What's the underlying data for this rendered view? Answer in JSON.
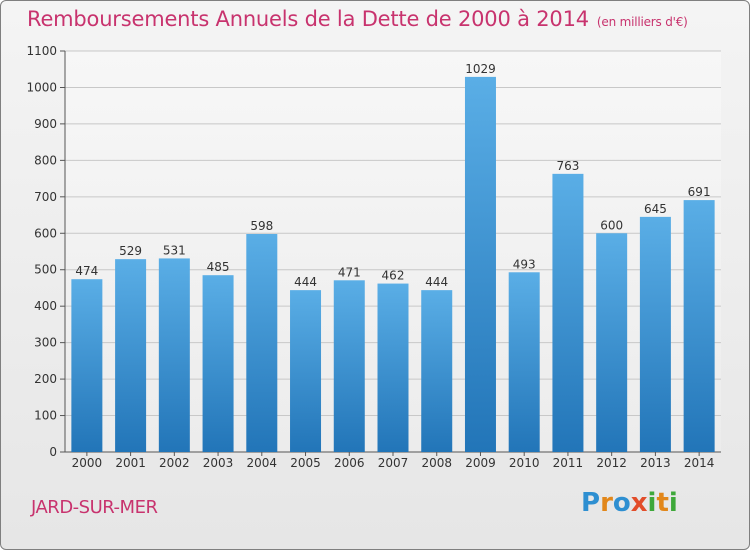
{
  "title": "Remboursements Annuels de la Dette de 2000 à 2014",
  "unit_note": "(en milliers d'€)",
  "commune": "JARD-SUR-MER",
  "logo": "Proxiti",
  "colors": {
    "title": "#c8336e",
    "bar_top": "#5aaee6",
    "bar_bottom": "#2275b8",
    "grid": "#c8c8c8"
  },
  "chart_data": {
    "type": "bar",
    "title": "Remboursements Annuels de la Dette de 2000 à 2014",
    "xlabel": "",
    "ylabel": "",
    "categories": [
      "2000",
      "2001",
      "2002",
      "2003",
      "2004",
      "2005",
      "2006",
      "2007",
      "2008",
      "2009",
      "2010",
      "2011",
      "2012",
      "2013",
      "2014"
    ],
    "values": [
      474,
      529,
      531,
      485,
      598,
      444,
      471,
      462,
      444,
      1029,
      493,
      763,
      600,
      645,
      691
    ],
    "ylim": [
      0,
      1100
    ],
    "yticks": [
      0,
      100,
      200,
      300,
      400,
      500,
      600,
      700,
      800,
      900,
      1000,
      1100
    ],
    "grid": true,
    "data_labels": true
  }
}
